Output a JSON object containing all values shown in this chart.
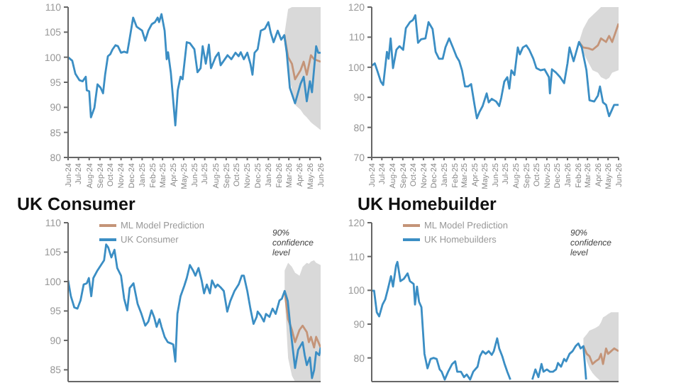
{
  "chart_data": [
    {
      "type": "line",
      "xlim": [
        "2024-06-01",
        "2026-06-01"
      ],
      "ylim": [
        80,
        110
      ],
      "yticks": [
        80,
        85,
        90,
        95,
        100,
        105,
        110
      ],
      "xticks": [
        {
          "value": "2024-06-01",
          "label": "Jun-24"
        },
        {
          "value": "2024-07-01",
          "label": "Jul-24"
        },
        {
          "value": "2024-08-01",
          "label": "Aug-24"
        },
        {
          "value": "2024-09-01",
          "label": "Sep-24"
        },
        {
          "value": "2024-10-01",
          "label": "Oct-24"
        },
        {
          "value": "2024-11-01",
          "label": "Nov-24"
        },
        {
          "value": "2024-12-01",
          "label": "Dec-24"
        },
        {
          "value": "2025-01-01",
          "label": "Jan-25"
        },
        {
          "value": "2025-02-01",
          "label": "Feb-25"
        },
        {
          "value": "2025-03-01",
          "label": "Mar-25"
        },
        {
          "value": "2025-04-01",
          "label": "Apr-25"
        },
        {
          "value": "2025-05-01",
          "label": "May-25"
        },
        {
          "value": "2025-06-01",
          "label": "Jun-25"
        },
        {
          "value": "2025-07-01",
          "label": "Jul-25"
        },
        {
          "value": "2025-08-01",
          "label": "Aug-25"
        },
        {
          "value": "2025-09-01",
          "label": "Sep-25"
        },
        {
          "value": "2025-10-01",
          "label": "Oct-25"
        },
        {
          "value": "2025-11-01",
          "label": "Nov-25"
        },
        {
          "value": "2025-12-01",
          "label": "Dec-25"
        },
        {
          "value": "2026-01-01",
          "label": "Jan-26"
        },
        {
          "value": "2026-02-01",
          "label": "Feb-26"
        },
        {
          "value": "2026-03-01",
          "label": "Mar-26"
        },
        {
          "value": "2026-04-01",
          "label": "Apr-26"
        },
        {
          "value": "2026-05-01",
          "label": "May-26"
        },
        {
          "value": "2026-06-01",
          "label": "Jun-26"
        }
      ],
      "series": [
        {
          "color": "#c49478",
          "x": [
            "2026-02-16",
            "2026-02-27",
            "2026-03-10",
            "2026-03-19",
            "2026-04-04",
            "2026-04-13",
            "2026-04-22",
            "2026-05-04",
            "2026-05-13",
            "2026-06-01"
          ],
          "values": [
            104.4,
            100,
            98.7,
            95.6,
            97.4,
            99.1,
            96.5,
            100.4,
            99.6,
            99.1
          ],
          "lower": [
            104.4,
            97,
            93.5,
            90.5,
            89.5,
            88.6,
            88,
            87,
            86.5,
            85.5
          ],
          "upper": [
            104.4,
            109.6,
            110,
            110,
            110,
            110,
            110,
            110,
            110,
            110
          ]
        },
        {
          "color": "#3b8ec4",
          "x": [
            "2024-06-01",
            "2024-06-13",
            "2024-06-22",
            "2024-07-04",
            "2024-07-13",
            "2024-07-22",
            "2024-07-25",
            "2024-08-01",
            "2024-08-06",
            "2024-08-16",
            "2024-08-25",
            "2024-09-03",
            "2024-09-10",
            "2024-09-16",
            "2024-09-24",
            "2024-10-01",
            "2024-10-07",
            "2024-10-16",
            "2024-10-23",
            "2024-11-01",
            "2024-11-10",
            "2024-11-19",
            "2024-11-25",
            "2024-12-06",
            "2024-12-16",
            "2025-01-01",
            "2025-01-10",
            "2025-01-19",
            "2025-01-29",
            "2025-02-07",
            "2025-02-15",
            "2025-02-19",
            "2025-02-26",
            "2025-03-07",
            "2025-03-13",
            "2025-03-17",
            "2025-03-25",
            "2025-04-07",
            "2025-04-14",
            "2025-04-22",
            "2025-04-28",
            "2025-05-10",
            "2025-05-19",
            "2025-06-01",
            "2025-06-10",
            "2025-06-19",
            "2025-06-25",
            "2025-07-04",
            "2025-07-13",
            "2025-07-19",
            "2025-08-01",
            "2025-08-10",
            "2025-08-16",
            "2025-08-25",
            "2025-09-05",
            "2025-09-16",
            "2025-09-28",
            "2025-10-07",
            "2025-10-13",
            "2025-10-22",
            "2025-11-01",
            "2025-11-10",
            "2025-11-16",
            "2025-11-22",
            "2025-12-01",
            "2025-12-10",
            "2025-12-22",
            "2026-01-01",
            "2026-01-08",
            "2026-01-16",
            "2026-01-28",
            "2026-02-07",
            "2026-02-16",
            "2026-02-23",
            "2026-03-04",
            "2026-03-19",
            "2026-04-04",
            "2026-04-13",
            "2026-04-22",
            "2026-05-01",
            "2026-05-07",
            "2026-05-19",
            "2026-05-25",
            "2026-06-01"
          ],
          "values": [
            100,
            99.3,
            96.7,
            95.4,
            95.2,
            96.1,
            93.4,
            93.2,
            88,
            89.9,
            94.6,
            93.9,
            92.8,
            96.5,
            100.2,
            100.6,
            101.5,
            102.4,
            102.2,
            100.9,
            101.1,
            100.9,
            103.3,
            107.9,
            106.1,
            105.3,
            103.3,
            105.3,
            106.6,
            107,
            107.9,
            107,
            108.6,
            105.3,
            99.6,
            101,
            96.9,
            86.4,
            93.4,
            96.1,
            95.6,
            103,
            102.8,
            101.6,
            97,
            97.8,
            102.2,
            98.7,
            102.5,
            97.8,
            100,
            100.9,
            98.4,
            99.3,
            100.4,
            99.6,
            100.9,
            100.2,
            101,
            99.6,
            100.9,
            98.7,
            96.5,
            100.9,
            101.6,
            105.3,
            105.7,
            107,
            104.8,
            103,
            105.3,
            103.5,
            104.4,
            100.9,
            93.9,
            90.8,
            94.7,
            96.1,
            91.2,
            95.2,
            93,
            102.2,
            100.9,
            100.9
          ]
        }
      ]
    },
    {
      "type": "line",
      "xlim": [
        "2024-06-01",
        "2026-06-01"
      ],
      "ylim": [
        70,
        120
      ],
      "yticks": [
        70,
        80,
        90,
        100,
        110,
        120
      ],
      "xticks": [
        {
          "value": "2024-06-01",
          "label": "Jun-24"
        },
        {
          "value": "2024-07-01",
          "label": "Jul-24"
        },
        {
          "value": "2024-08-01",
          "label": "Aug-24"
        },
        {
          "value": "2024-09-01",
          "label": "Sep-24"
        },
        {
          "value": "2024-10-01",
          "label": "Oct-24"
        },
        {
          "value": "2024-11-01",
          "label": "Nov-24"
        },
        {
          "value": "2024-12-01",
          "label": "Dec-24"
        },
        {
          "value": "2025-01-01",
          "label": "Jan-25"
        },
        {
          "value": "2025-02-01",
          "label": "Feb-25"
        },
        {
          "value": "2025-03-01",
          "label": "Mar-25"
        },
        {
          "value": "2025-04-01",
          "label": "Apr-25"
        },
        {
          "value": "2025-05-01",
          "label": "May-25"
        },
        {
          "value": "2025-06-01",
          "label": "Jun-25"
        },
        {
          "value": "2025-07-01",
          "label": "Jul-25"
        },
        {
          "value": "2025-08-01",
          "label": "Aug-25"
        },
        {
          "value": "2025-09-01",
          "label": "Sep-25"
        },
        {
          "value": "2025-10-01",
          "label": "Oct-25"
        },
        {
          "value": "2025-11-01",
          "label": "Nov-25"
        },
        {
          "value": "2025-12-01",
          "label": "Dec-25"
        },
        {
          "value": "2026-01-01",
          "label": "Jan-26"
        },
        {
          "value": "2026-02-01",
          "label": "Feb-26"
        },
        {
          "value": "2026-03-01",
          "label": "Mar-26"
        },
        {
          "value": "2026-04-01",
          "label": "Apr-26"
        },
        {
          "value": "2026-05-01",
          "label": "May-26"
        },
        {
          "value": "2026-06-01",
          "label": "Jun-26"
        }
      ],
      "series": [
        {
          "color": "#c49478",
          "x": [
            "2026-02-04",
            "2026-02-16",
            "2026-03-04",
            "2026-03-16",
            "2026-04-01",
            "2026-04-10",
            "2026-04-25",
            "2026-05-04",
            "2026-05-13",
            "2026-06-01"
          ],
          "values": [
            108.4,
            106.6,
            106.3,
            105.8,
            107.3,
            109.6,
            108.4,
            110.4,
            108.4,
            114.5
          ],
          "lower": [
            108.4,
            105,
            101.5,
            99,
            98.2,
            96.7,
            95.9,
            96.5,
            98.2,
            99
          ],
          "upper": [
            108.4,
            112.7,
            116,
            117.3,
            119,
            120,
            120,
            120,
            120,
            120
          ]
        },
        {
          "color": "#3b8ec4",
          "x": [
            "2024-06-01",
            "2024-06-10",
            "2024-06-17",
            "2024-06-28",
            "2024-07-05",
            "2024-07-16",
            "2024-07-21",
            "2024-07-27",
            "2024-08-03",
            "2024-08-13",
            "2024-08-22",
            "2024-09-02",
            "2024-09-10",
            "2024-09-22",
            "2024-10-01",
            "2024-10-08",
            "2024-10-16",
            "2024-10-25",
            "2024-11-07",
            "2024-11-16",
            "2024-11-28",
            "2024-12-07",
            "2024-12-17",
            "2024-12-28",
            "2025-01-05",
            "2025-01-16",
            "2025-01-27",
            "2025-02-07",
            "2025-02-15",
            "2025-02-23",
            "2025-03-04",
            "2025-03-13",
            "2025-03-22",
            "2025-04-01",
            "2025-04-08",
            "2025-04-16",
            "2025-04-25",
            "2025-05-07",
            "2025-05-13",
            "2025-05-22",
            "2025-06-04",
            "2025-06-13",
            "2025-06-19",
            "2025-06-28",
            "2025-07-07",
            "2025-07-13",
            "2025-07-19",
            "2025-07-28",
            "2025-08-07",
            "2025-08-13",
            "2025-08-22",
            "2025-09-01",
            "2025-09-10",
            "2025-09-22",
            "2025-10-01",
            "2025-10-13",
            "2025-10-25",
            "2025-11-07",
            "2025-11-10",
            "2025-11-16",
            "2025-11-28",
            "2025-12-10",
            "2025-12-22",
            "2026-01-01",
            "2026-01-07",
            "2026-01-19",
            "2026-02-04",
            "2026-02-12",
            "2026-02-26",
            "2026-03-07",
            "2026-03-21",
            "2026-04-01",
            "2026-04-07",
            "2026-04-16",
            "2026-04-25",
            "2026-05-04",
            "2026-05-13",
            "2026-05-19",
            "2026-06-01"
          ],
          "values": [
            100.5,
            101.3,
            99,
            95.2,
            94.1,
            105.1,
            102.8,
            109.6,
            99.7,
            105.8,
            107,
            105.8,
            113,
            115,
            115.7,
            117.3,
            108.1,
            109.3,
            109.6,
            115,
            112.7,
            105.1,
            102.8,
            102.8,
            106.6,
            109.6,
            106.6,
            103.5,
            102,
            99,
            93.6,
            93.6,
            94.4,
            87.5,
            83,
            85.2,
            87.1,
            91.3,
            88.3,
            89.5,
            88.6,
            87.1,
            89.8,
            95.2,
            96.7,
            92.9,
            99,
            97.4,
            106.6,
            104.3,
            106.6,
            107.3,
            105.8,
            102.8,
            99.7,
            99,
            99.3,
            96.7,
            91.3,
            99.3,
            98.2,
            96.7,
            94.7,
            101.3,
            106.6,
            102,
            108.4,
            106.6,
            99,
            89,
            88.6,
            90.6,
            93.6,
            88.3,
            87.5,
            83.7,
            86,
            87.5,
            87.5
          ]
        }
      ]
    },
    {
      "type": "line",
      "title": "UK Consumer",
      "legend": "top left",
      "tick_labels": "y",
      "annotations": [
        "90% confidence level"
      ],
      "xlim": [
        "2024-06-01",
        "2026-06-01"
      ],
      "ylim": [
        83,
        110
      ],
      "yticks": [
        85,
        90,
        95,
        100,
        105,
        110
      ],
      "series": [
        {
          "name": "ML Model Prediction",
          "color": "#c49478",
          "x": [
            "2026-02-17",
            "2026-02-27",
            "2026-03-10",
            "2026-03-19",
            "2026-04-01",
            "2026-04-10",
            "2026-04-22",
            "2026-04-28",
            "2026-05-04",
            "2026-05-13",
            "2026-05-19",
            "2026-06-01"
          ],
          "values": [
            98.4,
            93.6,
            91.8,
            89.7,
            91.8,
            92.5,
            91.4,
            89.7,
            90.6,
            88.8,
            90.6,
            88.8
          ],
          "lower": [
            97.5,
            87,
            84,
            83,
            83,
            83,
            83,
            83,
            83,
            83,
            83,
            83
          ],
          "upper": [
            101.9,
            103.2,
            102.5,
            101.5,
            101,
            102.5,
            103.2,
            103,
            103.4,
            103.6,
            103.2,
            102.8
          ]
        },
        {
          "name": "UK Consumer",
          "color": "#3b8ec4",
          "x": [
            "2024-06-01",
            "2024-06-09",
            "2024-06-19",
            "2024-06-28",
            "2024-07-07",
            "2024-07-16",
            "2024-07-25",
            "2024-07-31",
            "2024-08-07",
            "2024-08-13",
            "2024-08-25",
            "2024-09-04",
            "2024-09-13",
            "2024-09-19",
            "2024-09-25",
            "2024-10-04",
            "2024-10-13",
            "2024-10-21",
            "2024-11-01",
            "2024-11-10",
            "2024-11-19",
            "2024-11-26",
            "2024-12-07",
            "2024-12-19",
            "2024-12-30",
            "2025-01-10",
            "2025-01-19",
            "2025-01-28",
            "2025-02-05",
            "2025-02-12",
            "2025-02-20",
            "2025-02-26",
            "2025-03-07",
            "2025-03-16",
            "2025-03-25",
            "2025-04-01",
            "2025-04-07",
            "2025-04-13",
            "2025-04-22",
            "2025-05-03",
            "2025-05-10",
            "2025-05-19",
            "2025-05-28",
            "2025-06-04",
            "2025-06-13",
            "2025-06-22",
            "2025-06-29",
            "2025-07-07",
            "2025-07-16",
            "2025-07-22",
            "2025-08-01",
            "2025-08-07",
            "2025-08-16",
            "2025-08-25",
            "2025-09-04",
            "2025-09-13",
            "2025-09-25",
            "2025-10-07",
            "2025-10-16",
            "2025-10-22",
            "2025-11-01",
            "2025-11-10",
            "2025-11-19",
            "2025-11-28",
            "2025-12-01",
            "2025-12-10",
            "2025-12-19",
            "2025-12-25",
            "2026-01-04",
            "2026-01-13",
            "2026-01-22",
            "2026-02-02",
            "2026-02-09",
            "2026-02-17",
            "2026-02-26",
            "2026-03-07",
            "2026-03-19",
            "2026-03-28",
            "2026-04-10",
            "2026-04-16",
            "2026-04-22",
            "2026-05-01",
            "2026-05-07",
            "2026-05-13",
            "2026-05-19",
            "2026-05-28",
            "2026-06-01"
          ],
          "values": [
            100.2,
            97.5,
            95.6,
            95.4,
            96.8,
            99.5,
            99.7,
            100.6,
            97.5,
            100.6,
            101.9,
            102.8,
            103.6,
            106.3,
            105.8,
            104.1,
            105.4,
            102.3,
            101,
            97.1,
            95.1,
            98.9,
            99.7,
            96.2,
            94.5,
            92.5,
            93.2,
            95.1,
            93.9,
            92.3,
            93.6,
            92.3,
            90.6,
            89.7,
            89.5,
            89.3,
            86.4,
            94.5,
            97.5,
            99.3,
            100.6,
            102.8,
            101.9,
            101,
            102.3,
            100.2,
            98,
            99.5,
            98,
            100.2,
            99,
            99.5,
            99,
            98.4,
            94.9,
            96.7,
            98.4,
            99.5,
            101,
            101,
            98.4,
            95.4,
            92.8,
            94,
            94.9,
            94.2,
            93.2,
            94.5,
            94,
            95.4,
            94.5,
            96.8,
            97.1,
            98.4,
            96.7,
            91.4,
            85.3,
            88.4,
            89.7,
            87.5,
            85.8,
            87.1,
            83.6,
            84.9,
            88,
            87.5,
            88.8
          ]
        }
      ]
    },
    {
      "type": "line",
      "title": "UK Homebuilder",
      "legend": "top left",
      "tick_labels": "y",
      "annotations": [
        "90% confidence level"
      ],
      "xlim": [
        "2024-06-01",
        "2026-06-01"
      ],
      "ylim": [
        73,
        120
      ],
      "yticks": [
        80,
        90,
        100,
        110,
        120
      ],
      "series": [
        {
          "name": "ML Model Prediction",
          "color": "#c49478",
          "x": [
            "2026-02-17",
            "2026-02-27",
            "2026-03-07",
            "2026-03-16",
            "2026-03-25",
            "2026-04-04",
            "2026-04-10",
            "2026-04-16",
            "2026-04-25",
            "2026-05-01",
            "2026-05-10",
            "2026-05-19",
            "2026-06-01"
          ],
          "values": [
            83.5,
            81.2,
            80.5,
            78.2,
            79,
            79.7,
            81.2,
            78.2,
            82.8,
            81.2,
            82,
            82.8,
            82
          ],
          "lower": [
            82.8,
            79,
            77,
            75.5,
            74.5,
            73.6,
            73,
            73,
            73,
            73,
            73,
            73,
            73
          ],
          "upper": [
            85.8,
            87,
            88.1,
            88.5,
            88.9,
            89.5,
            90.5,
            92,
            92.5,
            93,
            93.5,
            93.5,
            93.5
          ]
        },
        {
          "name": "UK Homebuilders",
          "color": "#3b8ec4",
          "x": [
            "2024-06-01",
            "2024-06-08",
            "2024-06-16",
            "2024-06-23",
            "2024-07-03",
            "2024-07-11",
            "2024-07-19",
            "2024-07-28",
            "2024-08-03",
            "2024-08-12",
            "2024-08-16",
            "2024-08-25",
            "2024-09-04",
            "2024-09-15",
            "2024-09-22",
            "2024-10-03",
            "2024-10-07",
            "2024-10-13",
            "2024-10-19",
            "2024-10-26",
            "2024-11-04",
            "2024-11-13",
            "2024-11-22",
            "2024-12-01",
            "2024-12-10",
            "2024-12-19",
            "2024-12-25",
            "2025-01-03",
            "2025-01-13",
            "2025-01-25",
            "2025-02-03",
            "2025-02-09",
            "2025-02-20",
            "2025-03-01",
            "2025-03-09",
            "2025-03-19",
            "2025-03-28",
            "2025-04-10",
            "2025-04-17",
            "2025-04-25",
            "2025-05-04",
            "2025-05-13",
            "2025-05-22",
            "2025-05-28",
            "2025-06-07",
            "2025-06-13",
            "2025-06-22",
            "2025-06-29",
            "2025-07-07",
            "2025-07-16",
            "2025-08-16",
            "2025-09-19",
            "2025-09-28",
            "2025-10-07",
            "2025-10-16",
            "2025-10-22",
            "2025-11-01",
            "2025-11-10",
            "2025-11-19",
            "2025-11-28",
            "2025-12-04",
            "2025-12-13",
            "2025-12-22",
            "2025-12-28",
            "2026-01-07",
            "2026-01-16",
            "2026-01-25",
            "2026-02-02",
            "2026-02-09",
            "2026-02-17",
            "2026-02-25"
          ],
          "values": [
            99.9,
            99.9,
            93.5,
            92.3,
            95.8,
            97.3,
            100.4,
            104.2,
            101.1,
            107.3,
            108.4,
            102.7,
            103.4,
            105,
            102.7,
            101.9,
            95.8,
            101.1,
            96.6,
            95,
            81.2,
            76.9,
            79.7,
            80,
            79.7,
            76.6,
            75.9,
            73.6,
            75.9,
            78.2,
            79,
            75.9,
            75.9,
            74.3,
            75.1,
            73.6,
            75.9,
            77.4,
            80.5,
            82,
            81.2,
            82,
            80.9,
            82,
            85.8,
            82.8,
            80.5,
            78.2,
            75.9,
            73.6,
            null,
            73.6,
            76.6,
            74.3,
            78.2,
            75.9,
            76.6,
            75.9,
            75.9,
            76.6,
            78.5,
            77.4,
            79.7,
            79,
            81.2,
            82,
            83.5,
            84.3,
            82.8,
            83.5,
            73.6
          ]
        }
      ]
    }
  ]
}
